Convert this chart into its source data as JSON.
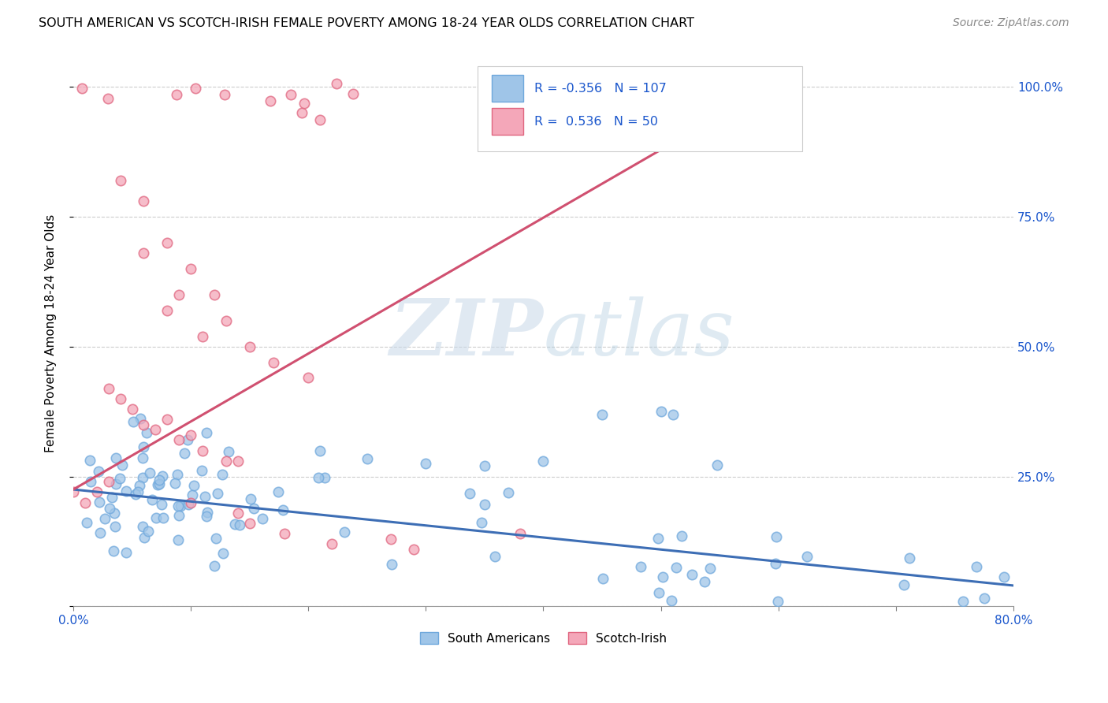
{
  "title": "SOUTH AMERICAN VS SCOTCH-IRISH FEMALE POVERTY AMONG 18-24 YEAR OLDS CORRELATION CHART",
  "source": "Source: ZipAtlas.com",
  "ylabel": "Female Poverty Among 18-24 Year Olds",
  "xlim": [
    0.0,
    0.8
  ],
  "ylim": [
    0.0,
    1.05
  ],
  "blue_R": -0.356,
  "blue_N": 107,
  "pink_R": 0.536,
  "pink_N": 50,
  "blue_color": "#9fc5e8",
  "pink_color": "#f4a7b9",
  "blue_edge_color": "#6fa8dc",
  "pink_edge_color": "#e06680",
  "blue_line_color": "#3d6eb5",
  "pink_line_color": "#d05070",
  "legend_blue_label": "South Americans",
  "legend_pink_label": "Scotch-Irish",
  "watermark_zip": "ZIP",
  "watermark_atlas": "atlas",
  "blue_line_x0": 0.0,
  "blue_line_y0": 0.225,
  "blue_line_x1": 0.8,
  "blue_line_y1": 0.04,
  "pink_line_x0": 0.0,
  "pink_line_y0": 0.225,
  "pink_line_x1": 0.6,
  "pink_line_y1": 1.01
}
